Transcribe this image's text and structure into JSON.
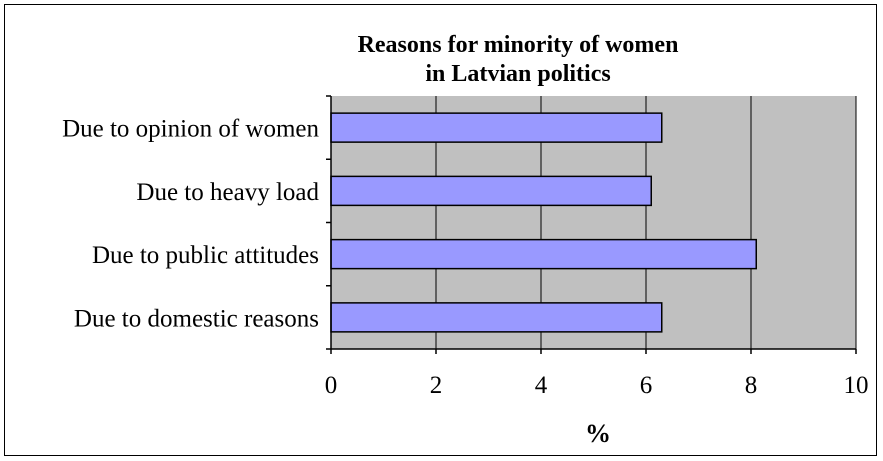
{
  "chart_data": {
    "type": "bar",
    "orientation": "horizontal",
    "title_lines": [
      "Reasons for minority of women",
      "in Latvian politics"
    ],
    "categories": [
      "Due to opinion of women",
      "Due to heavy load",
      "Due to public attitudes",
      "Due to domestic reasons"
    ],
    "values": [
      6.3,
      6.1,
      8.1,
      6.3
    ],
    "xlabel": "%",
    "xlim": [
      0,
      10
    ],
    "xticks": [
      "0",
      "2",
      "4",
      "6",
      "8",
      "10"
    ],
    "grid": true,
    "legend": "none",
    "colors": {
      "bar_fill": "#9999ff",
      "bar_stroke": "#000000",
      "plot_background": "#c0c0c0",
      "gridline": "#000000"
    }
  }
}
